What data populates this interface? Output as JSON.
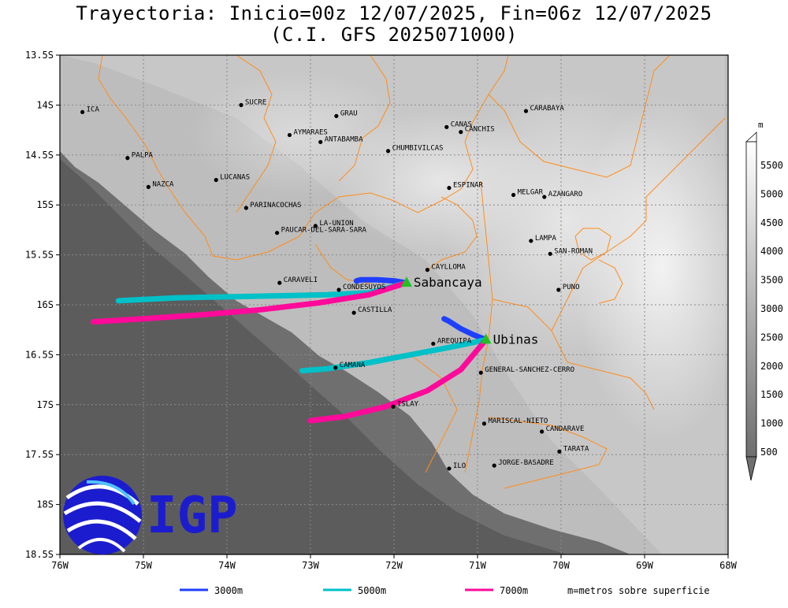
{
  "title_line1": "Trayectoria: Inicio=00z 12/07/2025, Fin=06z 12/07/2025",
  "title_line2": "(C.I. GFS 2025071000)",
  "map": {
    "lon_range": [
      -76,
      -68
    ],
    "lat_range": [
      -18.5,
      -13.5
    ],
    "x_ticks": [
      {
        "value": -76,
        "label": "76W"
      },
      {
        "value": -75,
        "label": "75W"
      },
      {
        "value": -74,
        "label": "74W"
      },
      {
        "value": -73,
        "label": "73W"
      },
      {
        "value": -72,
        "label": "72W"
      },
      {
        "value": -71,
        "label": "71W"
      },
      {
        "value": -70,
        "label": "70W"
      },
      {
        "value": -69,
        "label": "69W"
      },
      {
        "value": -68,
        "label": "68W"
      }
    ],
    "y_ticks": [
      {
        "value": -13.5,
        "label": "13.5S"
      },
      {
        "value": -14,
        "label": "14S"
      },
      {
        "value": -14.5,
        "label": "14.5S"
      },
      {
        "value": -15,
        "label": "15S"
      },
      {
        "value": -15.5,
        "label": "15.5S"
      },
      {
        "value": -16,
        "label": "16S"
      },
      {
        "value": -16.5,
        "label": "16.5S"
      },
      {
        "value": -17,
        "label": "17S"
      },
      {
        "value": -17.5,
        "label": "17.5S"
      },
      {
        "value": -18,
        "label": "18S"
      },
      {
        "value": -18.5,
        "label": "18.5S"
      }
    ],
    "grid": "dotted"
  },
  "places": [
    {
      "name": "ICA",
      "lon": -75.73,
      "lat": -14.07
    },
    {
      "name": "SUCRE",
      "lon": -73.83,
      "lat": -14.0
    },
    {
      "name": "GRAU",
      "lon": -72.69,
      "lat": -14.11
    },
    {
      "name": "CANAS",
      "lon": -71.37,
      "lat": -14.22
    },
    {
      "name": "CANCHIS",
      "lon": -71.2,
      "lat": -14.27
    },
    {
      "name": "CARABAYA",
      "lon": -70.42,
      "lat": -14.06
    },
    {
      "name": "AYMARAES",
      "lon": -73.25,
      "lat": -14.3
    },
    {
      "name": "ANTABAMBA",
      "lon": -72.88,
      "lat": -14.37
    },
    {
      "name": "CHUMBIVILCAS",
      "lon": -72.07,
      "lat": -14.46
    },
    {
      "name": "PALPA",
      "lon": -75.19,
      "lat": -14.53
    },
    {
      "name": "LUCANAS",
      "lon": -74.13,
      "lat": -14.75
    },
    {
      "name": "ESPINAR",
      "lon": -71.34,
      "lat": -14.83
    },
    {
      "name": "NAZCA",
      "lon": -74.94,
      "lat": -14.82
    },
    {
      "name": "MELGAR",
      "lon": -70.57,
      "lat": -14.9
    },
    {
      "name": "AZANGARO",
      "lon": -70.2,
      "lat": -14.92
    },
    {
      "name": "PARINACOCHAS",
      "lon": -73.77,
      "lat": -15.03
    },
    {
      "name": "LA-UNION",
      "lon": -72.94,
      "lat": -15.21
    },
    {
      "name": "PAUCAR-DEL-SARA-SARA",
      "lon": -73.4,
      "lat": -15.28
    },
    {
      "name": "LAMPA",
      "lon": -70.36,
      "lat": -15.36
    },
    {
      "name": "SAN-ROMAN",
      "lon": -70.13,
      "lat": -15.49
    },
    {
      "name": "CAYLLOMA",
      "lon": -71.6,
      "lat": -15.65
    },
    {
      "name": "CARAVELI",
      "lon": -73.37,
      "lat": -15.78
    },
    {
      "name": "CONDESUYOS",
      "lon": -72.66,
      "lat": -15.85
    },
    {
      "name": "PUNO",
      "lon": -70.03,
      "lat": -15.85
    },
    {
      "name": "CASTILLA",
      "lon": -72.48,
      "lat": -16.08
    },
    {
      "name": "AREQUIPA",
      "lon": -71.53,
      "lat": -16.39
    },
    {
      "name": "CAMANA",
      "lon": -72.7,
      "lat": -16.63
    },
    {
      "name": "GENERAL-SANCHEZ-CERRO",
      "lon": -70.96,
      "lat": -16.68
    },
    {
      "name": "ISLAY",
      "lon": -72.01,
      "lat": -17.02
    },
    {
      "name": "MARISCAL-NIETO",
      "lon": -70.92,
      "lat": -17.19
    },
    {
      "name": "CANDARAVE",
      "lon": -70.23,
      "lat": -17.27
    },
    {
      "name": "TARATA",
      "lon": -70.02,
      "lat": -17.47
    },
    {
      "name": "ILO",
      "lon": -71.34,
      "lat": -17.64
    },
    {
      "name": "JORGE-BASADRE",
      "lon": -70.8,
      "lat": -17.61
    }
  ],
  "volcanoes": [
    {
      "name": "Sabancaya",
      "lon": -71.85,
      "lat": -15.78
    },
    {
      "name": "Ubinas",
      "lon": -70.9,
      "lat": -16.35
    }
  ],
  "trajectories": [
    {
      "volcano": "Sabancaya",
      "level": "3000m",
      "color": "#1f3fff",
      "path": [
        [
          -71.85,
          -15.78
        ],
        [
          -72.0,
          -15.76
        ],
        [
          -72.2,
          -15.75
        ],
        [
          -72.4,
          -15.75
        ],
        [
          -72.45,
          -15.76
        ]
      ]
    },
    {
      "volcano": "Sabancaya",
      "level": "5000m",
      "color": "#00c0c8",
      "path": [
        [
          -71.85,
          -15.78
        ],
        [
          -72.3,
          -15.88
        ],
        [
          -72.8,
          -15.9
        ],
        [
          -73.4,
          -15.91
        ],
        [
          -74.0,
          -15.92
        ],
        [
          -74.6,
          -15.93
        ],
        [
          -75.3,
          -15.96
        ]
      ]
    },
    {
      "volcano": "Sabancaya",
      "level": "7000m",
      "color": "#ff0a9a",
      "path": [
        [
          -71.85,
          -15.78
        ],
        [
          -72.3,
          -15.9
        ],
        [
          -72.9,
          -15.98
        ],
        [
          -73.6,
          -16.05
        ],
        [
          -74.3,
          -16.1
        ],
        [
          -75.0,
          -16.14
        ],
        [
          -75.6,
          -16.17
        ]
      ]
    },
    {
      "volcano": "Ubinas",
      "level": "3000m",
      "color": "#1f3fff",
      "path": [
        [
          -70.9,
          -16.35
        ],
        [
          -71.05,
          -16.3
        ],
        [
          -71.2,
          -16.24
        ],
        [
          -71.35,
          -16.16
        ],
        [
          -71.4,
          -16.14
        ]
      ]
    },
    {
      "volcano": "Ubinas",
      "level": "5000m",
      "color": "#00c0c8",
      "path": [
        [
          -70.9,
          -16.35
        ],
        [
          -71.3,
          -16.42
        ],
        [
          -71.8,
          -16.5
        ],
        [
          -72.3,
          -16.58
        ],
        [
          -72.8,
          -16.64
        ],
        [
          -73.1,
          -16.66
        ]
      ]
    },
    {
      "volcano": "Ubinas",
      "level": "7000m",
      "color": "#ff0a9a",
      "path": [
        [
          -70.9,
          -16.35
        ],
        [
          -71.2,
          -16.65
        ],
        [
          -71.6,
          -16.86
        ],
        [
          -72.1,
          -17.02
        ],
        [
          -72.6,
          -17.12
        ],
        [
          -73.0,
          -17.16
        ]
      ]
    }
  ],
  "colorbar": {
    "unit": "m",
    "labels": [
      "500",
      "1000",
      "1500",
      "2000",
      "2500",
      "3000",
      "3500",
      "4000",
      "4500",
      "5000",
      "5500"
    ]
  },
  "legend": [
    {
      "label": "3000m",
      "color": "#1f3fff"
    },
    {
      "label": "5000m",
      "color": "#00c0c8"
    },
    {
      "label": "7000m",
      "color": "#ff0a9a"
    }
  ],
  "legend_note": "m=metros sobre superficie",
  "logo_text": "IGP",
  "colors": {
    "accent_blue": "#1c1ccf",
    "boundary": "#ff8c1a",
    "volcano_marker": "#22c022"
  }
}
